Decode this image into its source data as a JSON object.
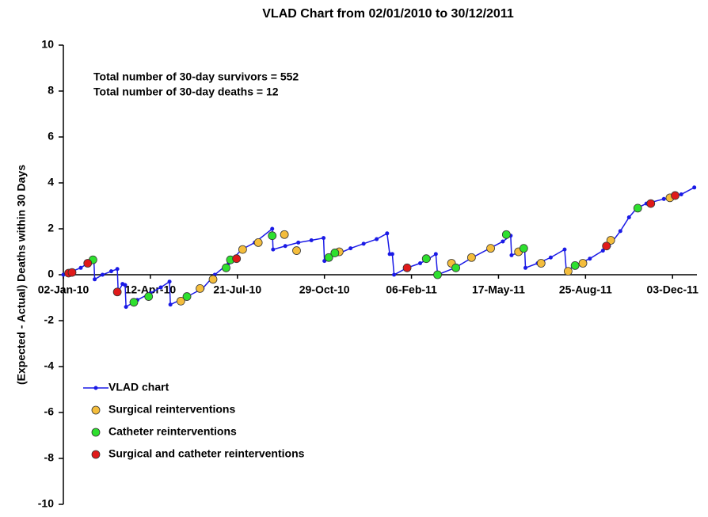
{
  "chart_data": {
    "type": "line",
    "title": "VLAD Chart from 02/01/2010 to 30/12/2011",
    "y_label": "(Expected - Actual) Deaths within 30 Days",
    "annotations": [
      "Total number of 30-day survivors = 552",
      "Total number of 30-day deaths = 12"
    ],
    "xlim": [
      0,
      728
    ],
    "ylim": [
      -10,
      10
    ],
    "xticks": [
      {
        "value": 0,
        "label": "02-Jan-10"
      },
      {
        "value": 100,
        "label": "12-Apr-10"
      },
      {
        "value": 200,
        "label": "21-Jul-10"
      },
      {
        "value": 300,
        "label": "29-Oct-10"
      },
      {
        "value": 400,
        "label": "06-Feb-11"
      },
      {
        "value": 500,
        "label": "17-May-11"
      },
      {
        "value": 600,
        "label": "25-Aug-11"
      },
      {
        "value": 700,
        "label": "03-Dec-11"
      }
    ],
    "yticks": [
      -10,
      -8,
      -6,
      -4,
      -2,
      0,
      2,
      4,
      6,
      8,
      10
    ],
    "legend": "lower left",
    "series": [
      {
        "name": "VLAD chart",
        "color": "#1a1ae6",
        "mode": "line",
        "x": [
          0,
          10,
          20,
          28,
          35,
          36,
          45,
          55,
          62,
          63,
          68,
          71,
          72,
          85,
          100,
          112,
          122,
          123,
          140,
          160,
          174,
          190,
          205,
          220,
          240,
          241,
          255,
          270,
          285,
          299,
          300,
          315,
          330,
          345,
          360,
          372,
          375,
          378,
          380,
          395,
          410,
          420,
          428,
          430,
          450,
          470,
          490,
          505,
          514,
          515,
          522,
          530,
          531,
          545,
          560,
          576,
          578,
          590,
          605,
          620,
          627,
          640,
          650,
          659,
          670,
          690,
          710,
          725
        ],
        "values": [
          0,
          0.15,
          0.3,
          0.5,
          0.7,
          -0.2,
          0,
          0.15,
          0.25,
          -0.75,
          -0.4,
          -0.45,
          -1.4,
          -1.1,
          -0.8,
          -0.55,
          -0.3,
          -1.3,
          -1.0,
          -0.6,
          0,
          0.5,
          1.1,
          1.4,
          2.0,
          1.1,
          1.25,
          1.4,
          1.5,
          1.6,
          0.6,
          0.9,
          1.15,
          1.35,
          1.55,
          1.8,
          0.9,
          0.9,
          0,
          0.3,
          0.5,
          0.7,
          0.9,
          0,
          0.3,
          0.75,
          1.15,
          1.45,
          1.7,
          0.85,
          0.95,
          1.2,
          0.3,
          0.5,
          0.75,
          1.1,
          0.15,
          0.45,
          0.7,
          1.05,
          1.25,
          1.9,
          2.5,
          2.9,
          3.1,
          3.3,
          3.5,
          3.8
        ]
      },
      {
        "name": "Surgical reinterventions",
        "color": "#f4bd3c",
        "mode": "markers",
        "x": [
          135,
          157,
          172,
          206,
          224,
          254,
          268,
          317,
          446,
          469,
          491,
          523,
          549,
          580,
          597,
          629,
          697
        ],
        "values": [
          -1.15,
          -0.6,
          -0.2,
          1.1,
          1.4,
          1.75,
          1.05,
          1.0,
          0.5,
          0.75,
          1.15,
          1.0,
          0.5,
          0.15,
          0.5,
          1.5,
          3.35
        ]
      },
      {
        "name": "Catheter reinterventions",
        "color": "#2ee02e",
        "mode": "markers",
        "x": [
          34,
          81,
          98,
          142,
          187,
          192,
          240,
          305,
          312,
          417,
          430,
          451,
          509,
          529,
          588,
          660
        ],
        "values": [
          0.65,
          -1.2,
          -0.95,
          -0.95,
          0.3,
          0.65,
          1.7,
          0.75,
          0.95,
          0.7,
          0,
          0.3,
          1.75,
          1.15,
          0.4,
          2.9
        ]
      },
      {
        "name": "Surgical and catheter reinterventions",
        "color": "#e01a1a",
        "mode": "markers",
        "x": [
          6,
          10,
          28,
          62,
          199,
          395,
          624,
          675,
          703
        ],
        "values": [
          0.07,
          0.1,
          0.5,
          -0.75,
          0.7,
          0.3,
          1.25,
          3.1,
          3.45
        ]
      }
    ]
  }
}
